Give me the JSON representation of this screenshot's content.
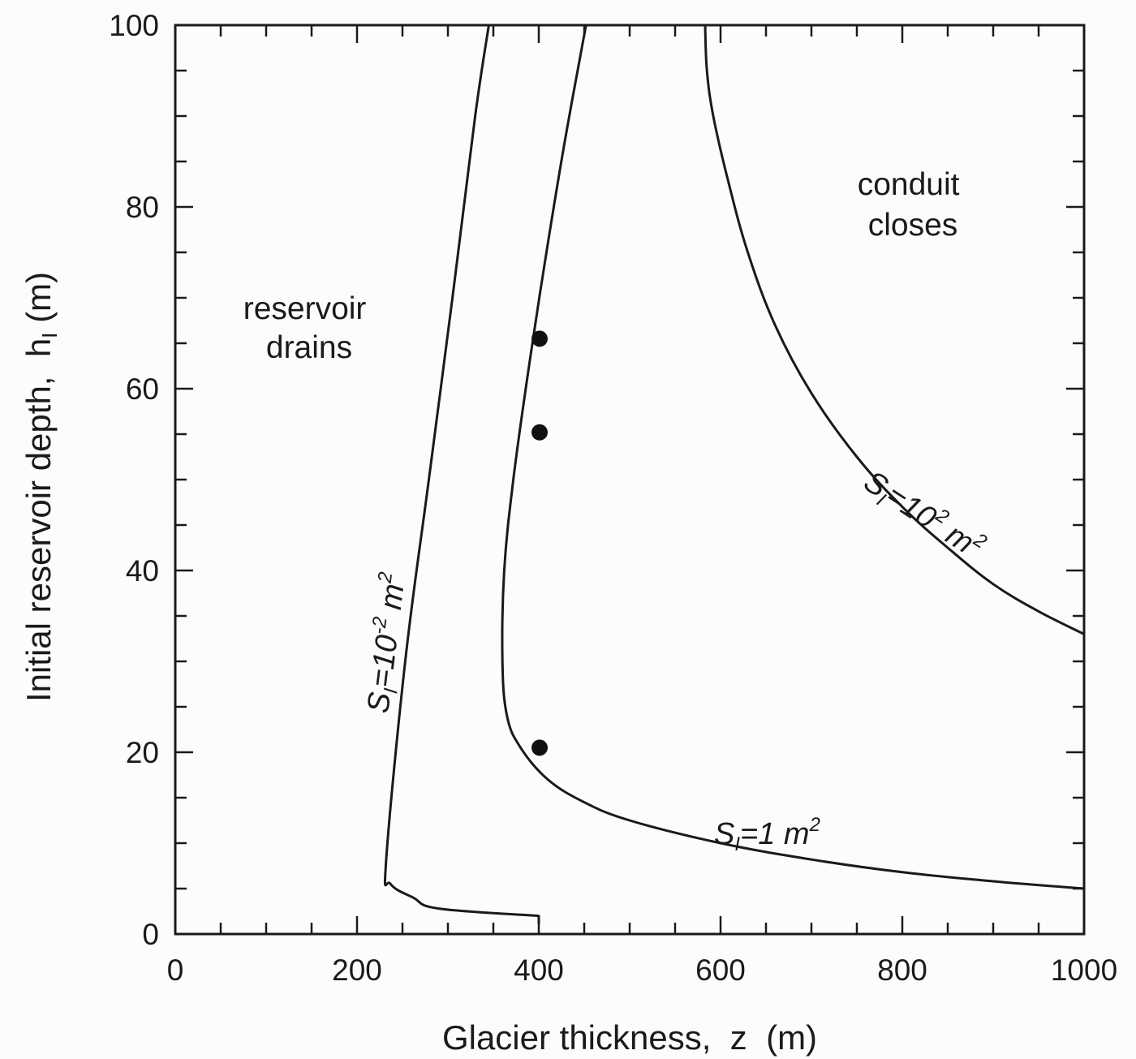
{
  "chart_data": {
    "type": "line",
    "title": "",
    "xlabel": "Glacier thickness,  z  (m)",
    "ylabel": "Initial reservoir depth,  h_i (m)",
    "xlim": [
      0,
      1000
    ],
    "ylim": [
      0,
      100
    ],
    "x_ticks": [
      0,
      200,
      400,
      600,
      800,
      1000
    ],
    "y_ticks": [
      0,
      20,
      40,
      60,
      80,
      100
    ],
    "x_minor_step": 50,
    "y_minor_step": 5,
    "grid": false,
    "series": [
      {
        "name": "S_i=10^-2 m^2",
        "x": [
          400,
          290,
          262,
          237,
          232,
          253,
          279,
          305,
          330,
          345
        ],
        "y": [
          2,
          2.8,
          4,
          5.5,
          8,
          30,
          50,
          70,
          90,
          100
        ]
      },
      {
        "name": "S_i=1 m^2",
        "x": [
          1000,
          900,
          800,
          700,
          600,
          500,
          450,
          410,
          380,
          365,
          360,
          362,
          372,
          390,
          410,
          430,
          452
        ],
        "y": [
          5,
          5.8,
          6.8,
          8.2,
          10,
          12.5,
          14.5,
          17,
          20.5,
          24,
          30,
          40,
          50,
          63,
          76,
          88,
          100
        ]
      },
      {
        "name": "S_i=10^2 m^2",
        "x": [
          1000,
          950,
          900,
          850,
          800,
          750,
          700,
          660,
          630,
          608,
          592,
          585,
          583
        ],
        "y": [
          33,
          35.5,
          38.5,
          42.5,
          47,
          52.5,
          59.5,
          67,
          75,
          83,
          90,
          95,
          100
        ]
      }
    ],
    "points": [
      {
        "x": 400,
        "y": 65.5
      },
      {
        "x": 400,
        "y": 55.2
      },
      {
        "x": 400,
        "y": 20.5
      }
    ],
    "annotations": [
      {
        "text": "reservoir drains",
        "x": 160,
        "y": 68
      },
      {
        "text": "conduit closes",
        "x": 810,
        "y": 82
      },
      {
        "text": "S_i=10^-2 m^2",
        "x": 245,
        "y": 35,
        "rotation": -83
      },
      {
        "text": "S_i=1 m^2",
        "x": 740,
        "y": 11
      },
      {
        "text": "S_i=10^2 m^2",
        "x": 835,
        "y": 46,
        "rotation": 33
      }
    ]
  },
  "labels": {
    "x_title": "Glacier thickness,  z  (m)",
    "y_title_main": "Initial reservoir depth,  h",
    "y_title_sub": "I",
    "y_title_unit": " (m)",
    "region_left_line1": "reservoir",
    "region_left_line2": "drains",
    "region_right_line1": "conduit",
    "region_right_line2": "closes",
    "curve_small": {
      "s": "S",
      "sub": "I",
      "eq": "=10",
      "exp": "-2",
      "unit": " m",
      "unit_exp": "2"
    },
    "curve_mid": {
      "s": "S",
      "sub": "I",
      "eq": "=1 m",
      "unit_exp": "2"
    },
    "curve_large": {
      "s": "S",
      "sub": "I",
      "eq": "=10",
      "exp": "2",
      "unit": " m",
      "unit_exp": "2"
    }
  }
}
